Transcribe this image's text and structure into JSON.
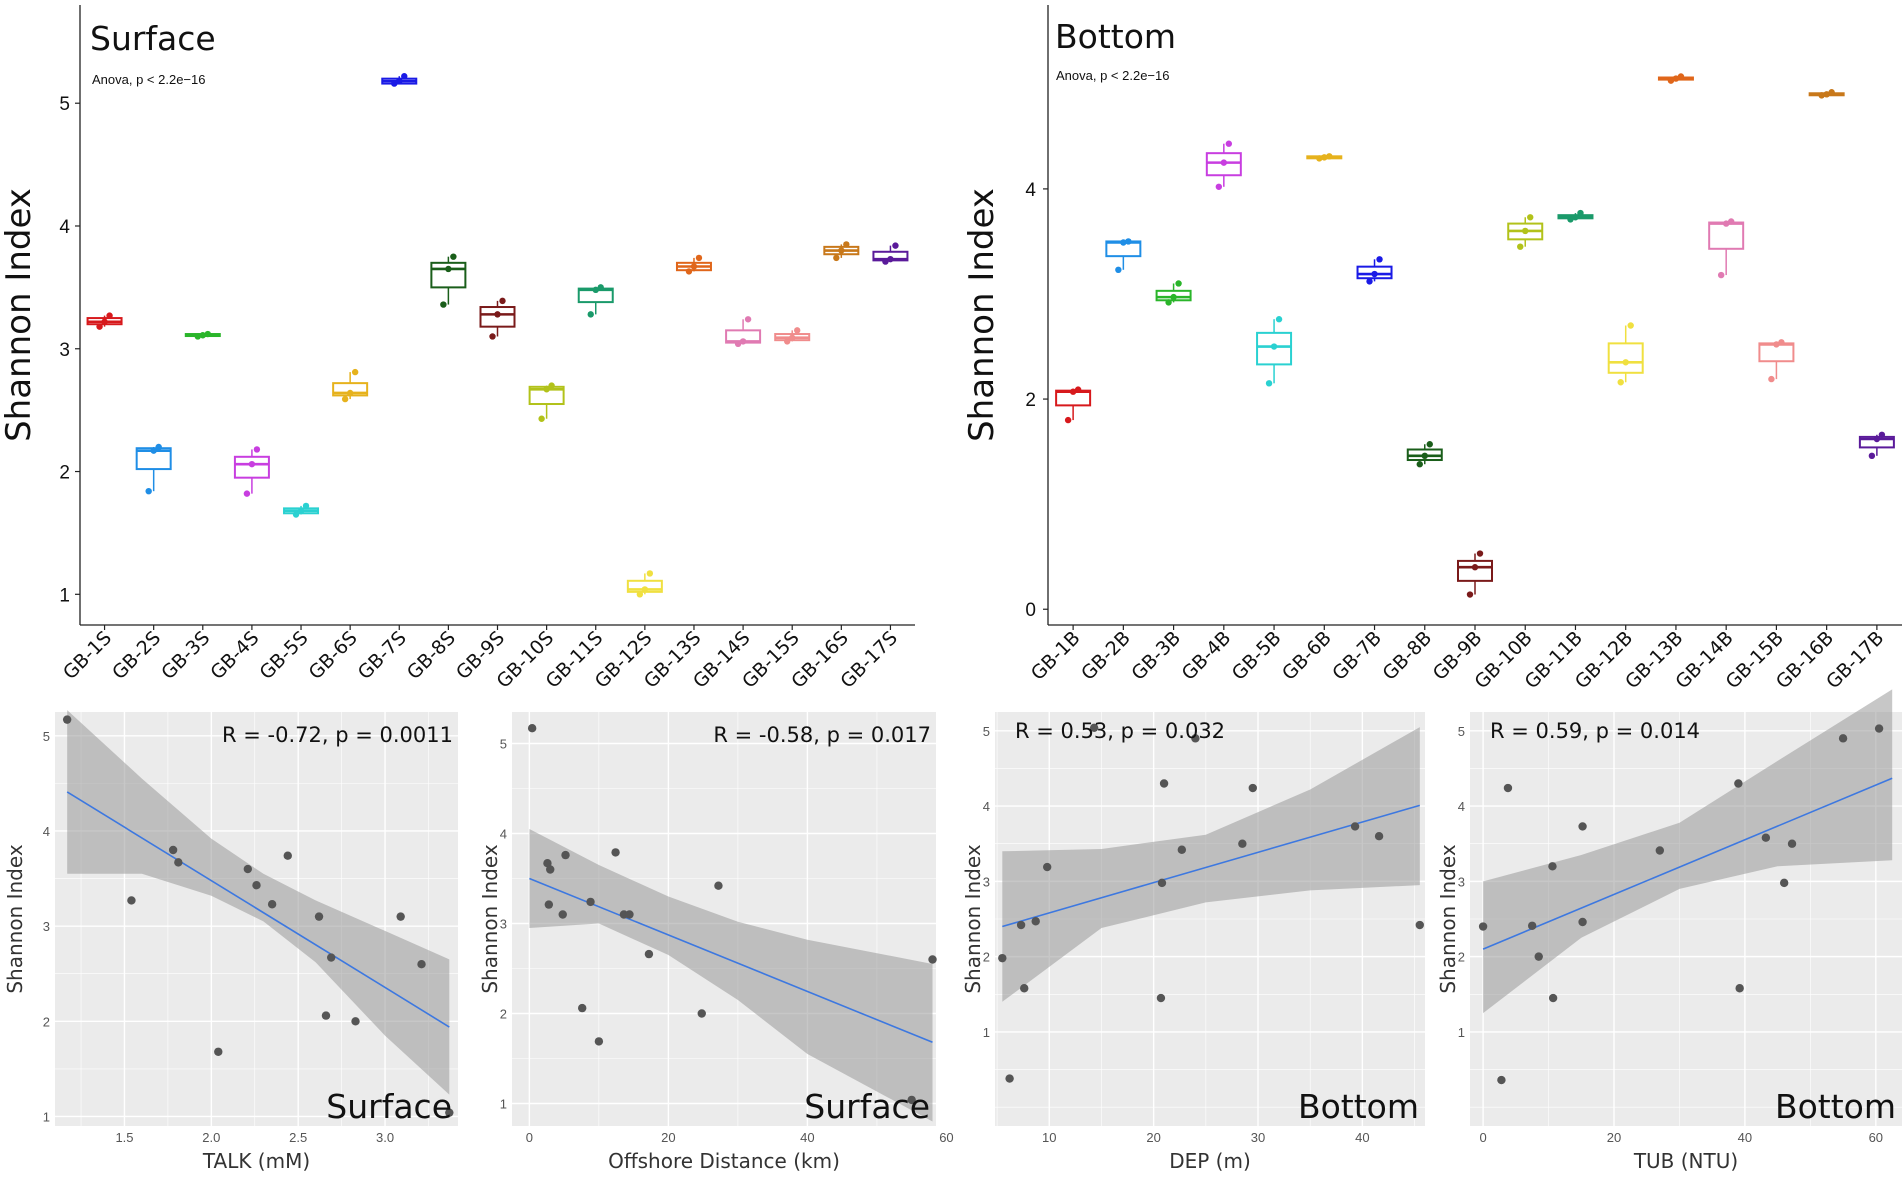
{
  "chart_data": [
    {
      "type": "box",
      "id": "surface_box",
      "title": "Surface",
      "annotation": "Anova, p < 2.2e−16",
      "ylabel": "Shannon Index",
      "xlabel": "",
      "ylim": [
        0.75,
        5.8
      ],
      "yticks": [
        1,
        2,
        3,
        4,
        5
      ],
      "categories": [
        "GB-1S",
        "GB-2S",
        "GB-3S",
        "GB-4S",
        "GB-5S",
        "GB-6S",
        "GB-7S",
        "GB-8S",
        "GB-9S",
        "GB-10S",
        "GB-11S",
        "GB-12S",
        "GB-13S",
        "GB-14S",
        "GB-15S",
        "GB-16S",
        "GB-17S"
      ],
      "colors": [
        "#d7191c",
        "#1f8ee6",
        "#2ab52a",
        "#c83ee0",
        "#2ad1d1",
        "#e6b21c",
        "#1a1ae6",
        "#1a5e1a",
        "#7a1a1a",
        "#b2c21a",
        "#1a9a6a",
        "#f0e040",
        "#e0661a",
        "#e07ab2",
        "#f08c8c",
        "#c8781a",
        "#5a1a9a"
      ],
      "boxes": [
        {
          "min": 3.18,
          "q1": 3.2,
          "median": 3.22,
          "q3": 3.25,
          "max": 3.27,
          "points": [
            3.18,
            3.22,
            3.27
          ]
        },
        {
          "min": 1.84,
          "q1": 2.02,
          "median": 2.17,
          "q3": 2.19,
          "max": 2.2,
          "points": [
            1.84,
            2.17,
            2.2
          ]
        },
        {
          "min": 3.1,
          "q1": 3.11,
          "median": 3.11,
          "q3": 3.12,
          "max": 3.12,
          "points": [
            3.1,
            3.11,
            3.12
          ]
        },
        {
          "min": 1.82,
          "q1": 1.95,
          "median": 2.06,
          "q3": 2.12,
          "max": 2.18,
          "points": [
            1.82,
            2.06,
            2.18
          ]
        },
        {
          "min": 1.65,
          "q1": 1.66,
          "median": 1.68,
          "q3": 1.7,
          "max": 1.72,
          "points": [
            1.65,
            1.68,
            1.72
          ]
        },
        {
          "min": 2.59,
          "q1": 2.62,
          "median": 2.64,
          "q3": 2.72,
          "max": 2.81,
          "points": [
            2.59,
            2.64,
            2.81
          ]
        },
        {
          "min": 5.16,
          "q1": 5.16,
          "median": 5.18,
          "q3": 5.2,
          "max": 5.22,
          "points": [
            5.16,
            5.18,
            5.22
          ]
        },
        {
          "min": 3.36,
          "q1": 3.5,
          "median": 3.65,
          "q3": 3.7,
          "max": 3.75,
          "points": [
            3.36,
            3.65,
            3.75
          ]
        },
        {
          "min": 3.1,
          "q1": 3.18,
          "median": 3.28,
          "q3": 3.34,
          "max": 3.39,
          "points": [
            3.1,
            3.28,
            3.39
          ]
        },
        {
          "min": 2.43,
          "q1": 2.55,
          "median": 2.67,
          "q3": 2.69,
          "max": 2.7,
          "points": [
            2.43,
            2.67,
            2.7
          ]
        },
        {
          "min": 3.28,
          "q1": 3.38,
          "median": 3.48,
          "q3": 3.49,
          "max": 3.5,
          "points": [
            3.28,
            3.48,
            3.5
          ]
        },
        {
          "min": 1.0,
          "q1": 1.02,
          "median": 1.04,
          "q3": 1.11,
          "max": 1.17,
          "points": [
            1.0,
            1.04,
            1.17
          ]
        },
        {
          "min": 3.63,
          "q1": 3.64,
          "median": 3.67,
          "q3": 3.7,
          "max": 3.74,
          "points": [
            3.63,
            3.67,
            3.74
          ]
        },
        {
          "min": 3.04,
          "q1": 3.05,
          "median": 3.06,
          "q3": 3.15,
          "max": 3.24,
          "points": [
            3.04,
            3.06,
            3.24
          ]
        },
        {
          "min": 3.06,
          "q1": 3.07,
          "median": 3.09,
          "q3": 3.12,
          "max": 3.15,
          "points": [
            3.06,
            3.09,
            3.15
          ]
        },
        {
          "min": 3.74,
          "q1": 3.77,
          "median": 3.8,
          "q3": 3.83,
          "max": 3.85,
          "points": [
            3.74,
            3.8,
            3.85
          ]
        },
        {
          "min": 3.71,
          "q1": 3.72,
          "median": 3.73,
          "q3": 3.79,
          "max": 3.84,
          "points": [
            3.71,
            3.73,
            3.84
          ]
        }
      ]
    },
    {
      "type": "box",
      "id": "bottom_box",
      "title": "Bottom",
      "annotation": "Anova, p < 2.2e−16",
      "ylabel": "Shannon Index",
      "xlabel": "",
      "ylim": [
        -0.15,
        5.75
      ],
      "yticks": [
        0,
        2,
        4
      ],
      "categories": [
        "GB-1B",
        "GB-2B",
        "GB-3B",
        "GB-4B",
        "GB-5B",
        "GB-6B",
        "GB-7B",
        "GB-8B",
        "GB-9B",
        "GB-10B",
        "GB-11B",
        "GB-12B",
        "GB-13B",
        "GB-14B",
        "GB-15B",
        "GB-16B",
        "GB-17B"
      ],
      "colors": [
        "#d7191c",
        "#1f8ee6",
        "#2ab52a",
        "#c83ee0",
        "#2ad1d1",
        "#e6b21c",
        "#1a1ae6",
        "#1a5e1a",
        "#7a1a1a",
        "#b2c21a",
        "#1a9a6a",
        "#f0e040",
        "#e0661a",
        "#e07ab2",
        "#f08c8c",
        "#c8781a",
        "#5a1a9a"
      ],
      "boxes": [
        {
          "min": 1.8,
          "q1": 1.94,
          "median": 2.07,
          "q3": 2.08,
          "max": 2.09,
          "points": [
            1.8,
            2.07,
            2.09
          ]
        },
        {
          "min": 3.23,
          "q1": 3.36,
          "median": 3.49,
          "q3": 3.5,
          "max": 3.5,
          "points": [
            3.23,
            3.49,
            3.5
          ]
        },
        {
          "min": 2.92,
          "q1": 2.94,
          "median": 2.97,
          "q3": 3.03,
          "max": 3.1,
          "points": [
            2.92,
            2.97,
            3.1
          ]
        },
        {
          "min": 4.02,
          "q1": 4.13,
          "median": 4.25,
          "q3": 4.34,
          "max": 4.43,
          "points": [
            4.02,
            4.25,
            4.43
          ]
        },
        {
          "min": 2.15,
          "q1": 2.33,
          "median": 2.5,
          "q3": 2.63,
          "max": 2.76,
          "points": [
            2.15,
            2.5,
            2.76
          ]
        },
        {
          "min": 4.29,
          "q1": 4.3,
          "median": 4.3,
          "q3": 4.31,
          "max": 4.31,
          "points": [
            4.29,
            4.3,
            4.31
          ]
        },
        {
          "min": 3.12,
          "q1": 3.15,
          "median": 3.19,
          "q3": 3.26,
          "max": 3.33,
          "points": [
            3.12,
            3.19,
            3.33
          ]
        },
        {
          "min": 1.38,
          "q1": 1.42,
          "median": 1.46,
          "q3": 1.52,
          "max": 1.57,
          "points": [
            1.38,
            1.46,
            1.57
          ]
        },
        {
          "min": 0.14,
          "q1": 0.27,
          "median": 0.4,
          "q3": 0.46,
          "max": 0.53,
          "points": [
            0.14,
            0.4,
            0.53
          ]
        },
        {
          "min": 3.45,
          "q1": 3.52,
          "median": 3.6,
          "q3": 3.67,
          "max": 3.73,
          "points": [
            3.45,
            3.6,
            3.73
          ]
        },
        {
          "min": 3.71,
          "q1": 3.72,
          "median": 3.73,
          "q3": 3.75,
          "max": 3.77,
          "points": [
            3.71,
            3.73,
            3.77
          ]
        },
        {
          "min": 2.16,
          "q1": 2.25,
          "median": 2.35,
          "q3": 2.53,
          "max": 2.7,
          "points": [
            2.16,
            2.35,
            2.7
          ]
        },
        {
          "min": 5.03,
          "q1": 5.04,
          "median": 5.05,
          "q3": 5.06,
          "max": 5.07,
          "points": [
            5.03,
            5.05,
            5.07
          ]
        },
        {
          "min": 3.18,
          "q1": 3.43,
          "median": 3.67,
          "q3": 3.68,
          "max": 3.69,
          "points": [
            3.18,
            3.67,
            3.69
          ]
        },
        {
          "min": 2.19,
          "q1": 2.36,
          "median": 2.52,
          "q3": 2.53,
          "max": 2.54,
          "points": [
            2.19,
            2.52,
            2.54
          ]
        },
        {
          "min": 4.89,
          "q1": 4.9,
          "median": 4.9,
          "q3": 4.91,
          "max": 4.92,
          "points": [
            4.89,
            4.9,
            4.92
          ]
        },
        {
          "min": 1.46,
          "q1": 1.54,
          "median": 1.62,
          "q3": 1.64,
          "max": 1.66,
          "points": [
            1.46,
            1.62,
            1.66
          ]
        }
      ]
    },
    {
      "type": "scatter",
      "id": "talk",
      "xlabel": "TALK (mM)",
      "ylabel": "Shannon Index",
      "stat": "R = -0.72, p = 0.0011",
      "corner_label": "Surface",
      "xlim": [
        1.1,
        3.42
      ],
      "ylim": [
        0.9,
        5.25
      ],
      "xticks": [
        1.5,
        2.0,
        2.5,
        3.0
      ],
      "xticklabels": [
        "1.5",
        "2.0",
        "2.5",
        "3.0"
      ],
      "yticks": [
        1,
        2,
        3,
        4,
        5
      ],
      "fit": {
        "x0": 1.17,
        "y0": 4.41,
        "x1": 3.37,
        "y1": 1.94
      },
      "band_upper": [
        [
          1.17,
          5.27
        ],
        [
          1.6,
          4.55
        ],
        [
          2.0,
          3.92
        ],
        [
          2.3,
          3.55
        ],
        [
          2.6,
          3.27
        ],
        [
          3.0,
          2.95
        ],
        [
          3.37,
          2.65
        ]
      ],
      "band_lower": [
        [
          1.17,
          3.55
        ],
        [
          1.6,
          3.55
        ],
        [
          2.0,
          3.32
        ],
        [
          2.3,
          3.05
        ],
        [
          2.6,
          2.62
        ],
        [
          3.0,
          1.85
        ],
        [
          3.37,
          1.23
        ]
      ],
      "points": [
        [
          1.17,
          5.17
        ],
        [
          1.54,
          3.27
        ],
        [
          1.78,
          3.8
        ],
        [
          1.81,
          3.67
        ],
        [
          2.04,
          1.68
        ],
        [
          2.21,
          3.6
        ],
        [
          2.26,
          3.43
        ],
        [
          2.35,
          3.23
        ],
        [
          2.44,
          3.74
        ],
        [
          2.62,
          3.1
        ],
        [
          2.66,
          2.06
        ],
        [
          2.69,
          2.67
        ],
        [
          2.83,
          2.0
        ],
        [
          3.09,
          3.1
        ],
        [
          3.21,
          2.6
        ],
        [
          3.37,
          1.04
        ]
      ]
    },
    {
      "type": "scatter",
      "id": "offshore",
      "xlabel": "Offshore Distance (km)",
      "ylabel": "Shannon Index",
      "stat": "R = -0.58, p = 0.017",
      "corner_label": "Surface",
      "xlim": [
        -2.5,
        58.5
      ],
      "ylim": [
        0.75,
        5.35
      ],
      "xticks": [
        0,
        20,
        40,
        60
      ],
      "xticklabels": [
        "0",
        "20",
        "40",
        "60"
      ],
      "yticks": [
        1,
        2,
        3,
        4,
        5
      ],
      "fit": {
        "x0": 0,
        "y0": 3.5,
        "x1": 58,
        "y1": 1.68
      },
      "band_upper": [
        [
          0,
          4.05
        ],
        [
          10,
          3.65
        ],
        [
          20,
          3.3
        ],
        [
          30,
          3.02
        ],
        [
          40,
          2.82
        ],
        [
          58,
          2.55
        ]
      ],
      "band_lower": [
        [
          0,
          2.95
        ],
        [
          10,
          3.0
        ],
        [
          20,
          2.65
        ],
        [
          30,
          2.15
        ],
        [
          40,
          1.55
        ],
        [
          58,
          0.8
        ]
      ],
      "points": [
        [
          0.4,
          5.17
        ],
        [
          2.6,
          3.67
        ],
        [
          3.0,
          3.6
        ],
        [
          2.8,
          3.21
        ],
        [
          4.8,
          3.1
        ],
        [
          5.2,
          3.76
        ],
        [
          7.6,
          2.06
        ],
        [
          8.8,
          3.24
        ],
        [
          10.0,
          1.69
        ],
        [
          12.4,
          3.79
        ],
        [
          13.6,
          3.1
        ],
        [
          14.4,
          3.1
        ],
        [
          17.2,
          2.66
        ],
        [
          24.8,
          2.0
        ],
        [
          27.2,
          3.42
        ],
        [
          55.0,
          1.04
        ],
        [
          58.0,
          2.6
        ]
      ]
    },
    {
      "type": "scatter",
      "id": "dep",
      "xlabel": "DEP (m)",
      "ylabel": "Shannon Index",
      "stat": "R = 0.53, p = 0.032",
      "corner_label": "Bottom",
      "xlim": [
        4.8,
        46
      ],
      "ylim": [
        -0.25,
        5.25
      ],
      "xticks": [
        10,
        20,
        30,
        40
      ],
      "xticklabels": [
        "10",
        "20",
        "30",
        "40"
      ],
      "yticks": [
        1,
        2,
        3,
        4,
        5
      ],
      "fit": {
        "x0": 5.5,
        "y0": 2.4,
        "x1": 45.5,
        "y1": 4.01
      },
      "band_upper": [
        [
          5.5,
          3.4
        ],
        [
          15,
          3.43
        ],
        [
          25,
          3.62
        ],
        [
          35,
          4.22
        ],
        [
          45.5,
          5.05
        ]
      ],
      "band_lower": [
        [
          5.5,
          1.4
        ],
        [
          15,
          2.38
        ],
        [
          25,
          2.72
        ],
        [
          35,
          2.88
        ],
        [
          45.5,
          2.95
        ]
      ],
      "points": [
        [
          5.5,
          1.98
        ],
        [
          6.2,
          0.38
        ],
        [
          7.3,
          2.42
        ],
        [
          7.6,
          1.58
        ],
        [
          8.7,
          2.47
        ],
        [
          9.8,
          3.19
        ],
        [
          14.3,
          5.04
        ],
        [
          20.7,
          1.45
        ],
        [
          20.8,
          2.98
        ],
        [
          21.0,
          4.3
        ],
        [
          22.7,
          3.42
        ],
        [
          24.0,
          4.9
        ],
        [
          28.5,
          3.5
        ],
        [
          29.5,
          4.24
        ],
        [
          39.3,
          3.73
        ],
        [
          41.6,
          3.6
        ],
        [
          45.5,
          2.42
        ]
      ]
    },
    {
      "type": "scatter",
      "id": "tub",
      "xlabel": "TUB (NTU)",
      "ylabel": "Shannon Index",
      "stat": "R = 0.59, p = 0.014",
      "corner_label": "Bottom",
      "xlim": [
        -2,
        64
      ],
      "ylim": [
        -0.25,
        5.25
      ],
      "xticks": [
        0,
        20,
        40,
        60
      ],
      "xticklabels": [
        "0",
        "20",
        "40",
        "60"
      ],
      "yticks": [
        1,
        2,
        3,
        4,
        5
      ],
      "fit": {
        "x0": 0,
        "y0": 2.1,
        "x1": 62.5,
        "y1": 4.37
      },
      "band_upper": [
        [
          0,
          3.0
        ],
        [
          15,
          3.35
        ],
        [
          30,
          3.78
        ],
        [
          45,
          4.6
        ],
        [
          62.5,
          5.55
        ]
      ],
      "band_lower": [
        [
          0,
          1.25
        ],
        [
          15,
          2.25
        ],
        [
          30,
          2.9
        ],
        [
          45,
          3.2
        ],
        [
          62.5,
          3.28
        ]
      ],
      "points": [
        [
          0,
          2.4
        ],
        [
          2.8,
          0.36
        ],
        [
          3.8,
          4.24
        ],
        [
          7.5,
          2.41
        ],
        [
          8.5,
          2.0
        ],
        [
          10.6,
          3.2
        ],
        [
          10.7,
          1.45
        ],
        [
          15.2,
          3.73
        ],
        [
          15.2,
          2.46
        ],
        [
          27.0,
          3.41
        ],
        [
          39.0,
          4.3
        ],
        [
          39.2,
          1.58
        ],
        [
          43.2,
          3.58
        ],
        [
          46.0,
          2.98
        ],
        [
          47.2,
          3.5
        ],
        [
          55.0,
          4.9
        ],
        [
          60.5,
          5.03
        ]
      ]
    }
  ]
}
